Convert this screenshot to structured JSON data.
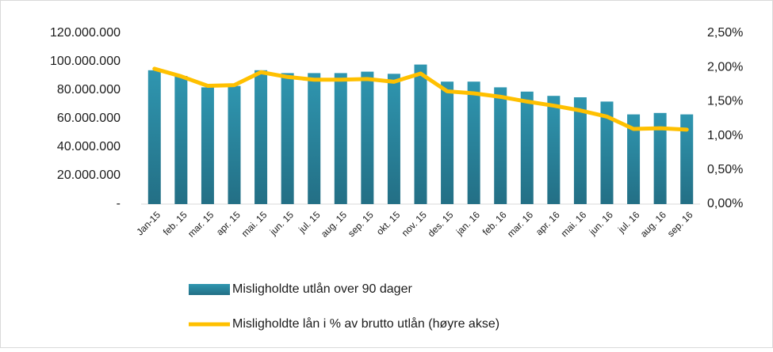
{
  "chart_data": {
    "type": "bar_line",
    "categories": [
      "Jan-15",
      "feb. 15",
      "mar. 15",
      "apr. 15",
      "mai. 15",
      "jun. 15",
      "jul. 15",
      "aug. 15",
      "sep. 15",
      "okt. 15",
      "nov. 15",
      "des. 15",
      "jan. 16",
      "feb. 16",
      "mar. 16",
      "apr. 16",
      "mai. 16",
      "jun. 16",
      "jul. 16",
      "aug. 16",
      "sep. 16"
    ],
    "series": [
      {
        "name": "Misligholdte utlån over 90 dager",
        "type": "bar",
        "color": "#2e8ea8",
        "values": [
          94000000,
          90000000,
          82000000,
          83000000,
          94000000,
          92000000,
          92000000,
          92000000,
          93000000,
          91500000,
          98000000,
          86000000,
          86000000,
          82000000,
          79000000,
          76000000,
          75000000,
          72000000,
          63000000,
          64000000,
          63000000
        ]
      },
      {
        "name": "Misligholdte lån i % av brutto utlån (høyre akse)",
        "type": "line",
        "axis": "y2",
        "color": "#ffc000",
        "values": [
          1.98,
          1.87,
          1.73,
          1.74,
          1.93,
          1.86,
          1.82,
          1.82,
          1.83,
          1.79,
          1.91,
          1.65,
          1.62,
          1.57,
          1.5,
          1.44,
          1.37,
          1.28,
          1.1,
          1.11,
          1.09
        ]
      }
    ],
    "ylim": [
      0,
      120000000
    ],
    "yticks": [
      {
        "value": 0,
        "label": "-"
      },
      {
        "value": 20000000,
        "label": "20.000.000"
      },
      {
        "value": 40000000,
        "label": "40.000.000"
      },
      {
        "value": 60000000,
        "label": "60.000.000"
      },
      {
        "value": 80000000,
        "label": "80.000.000"
      },
      {
        "value": 100000000,
        "label": "100.000.000"
      },
      {
        "value": 120000000,
        "label": "120.000.000"
      }
    ],
    "y2lim": [
      0,
      2.5
    ],
    "y2ticks": [
      {
        "value": 0,
        "label": "0,00%"
      },
      {
        "value": 0.5,
        "label": "0,50%"
      },
      {
        "value": 1,
        "label": "1,00%"
      },
      {
        "value": 1.5,
        "label": "1,50%"
      },
      {
        "value": 2,
        "label": "2,00%"
      },
      {
        "value": 2.5,
        "label": "2,50%"
      }
    ],
    "grid": false
  }
}
